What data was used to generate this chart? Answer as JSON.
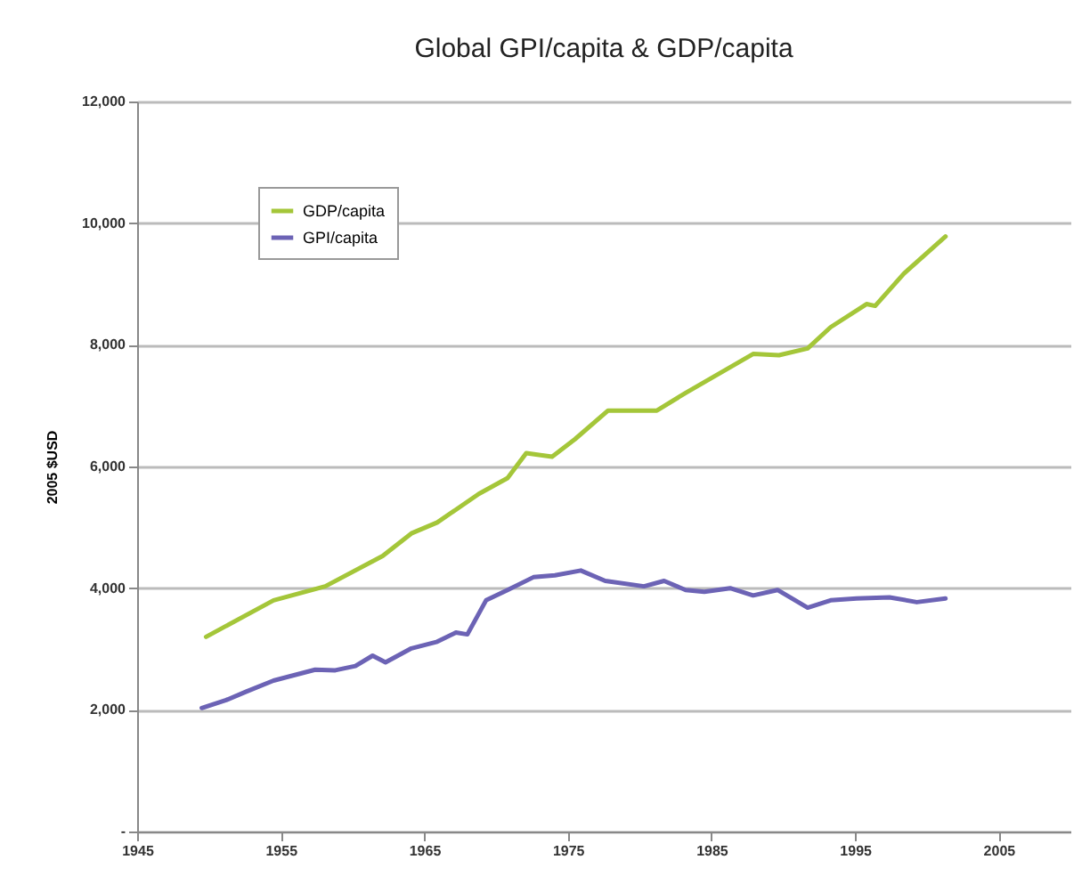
{
  "chart_data": {
    "type": "line",
    "title": "Global GPI/capita & GDP/capita",
    "ylabel": "2005 $USD",
    "xlim": [
      1945,
      2010
    ],
    "xticks": [
      1945,
      1955,
      1965,
      1975,
      1985,
      1995,
      2005
    ],
    "ylim": [
      0,
      12000
    ],
    "yticks": [
      {
        "value": 0,
        "label": "-"
      },
      {
        "value": 2000,
        "label": "2,000"
      },
      {
        "value": 4000,
        "label": "4,000"
      },
      {
        "value": 6000,
        "label": "6,000"
      },
      {
        "value": 8000,
        "label": "8,000"
      },
      {
        "value": 10000,
        "label": "10,000"
      },
      {
        "value": 12000,
        "label": "12,000"
      }
    ],
    "grid": "y",
    "legend": "top left",
    "series": [
      {
        "name": "GDP/capita",
        "color": "#a4c639",
        "x": [
          1949.8,
          1954.5,
          1958.1,
          1962.1,
          1964.1,
          1965.9,
          1968.8,
          1970.8,
          1972.1,
          1973.9,
          1975.5,
          1977.8,
          1981.2,
          1983.2,
          1987.9,
          1989.7,
          1991.7,
          1993.3,
          1995.8,
          1996.4,
          1998.4,
          2001.3
        ],
        "values": [
          3200,
          3800,
          4030,
          4530,
          4900,
          5080,
          5550,
          5810,
          6220,
          6160,
          6450,
          6920,
          6920,
          7210,
          7850,
          7830,
          7940,
          8290,
          8670,
          8640,
          9170,
          9780
        ]
      },
      {
        "name": "GPI/capita",
        "color": "#6c63b5",
        "x": [
          1949.5,
          1951.2,
          1952.6,
          1954.5,
          1957.4,
          1958.8,
          1960.2,
          1961.4,
          1962.3,
          1964.1,
          1965.9,
          1967.2,
          1968,
          1969.3,
          1970.8,
          1972.6,
          1974.1,
          1975.9,
          1977.6,
          1980.3,
          1981.7,
          1983.2,
          1984.5,
          1986.3,
          1987.9,
          1989.6,
          1991.7,
          1993.3,
          1995.1,
          1997.4,
          1999.3,
          2001.3
        ],
        "values": [
          2030,
          2160,
          2300,
          2480,
          2660,
          2650,
          2720,
          2890,
          2780,
          3010,
          3120,
          3270,
          3240,
          3800,
          3970,
          4180,
          4210,
          4290,
          4120,
          4030,
          4120,
          3970,
          3940,
          4000,
          3880,
          3970,
          3680,
          3800,
          3830,
          3850,
          3770,
          3830
        ]
      }
    ]
  }
}
